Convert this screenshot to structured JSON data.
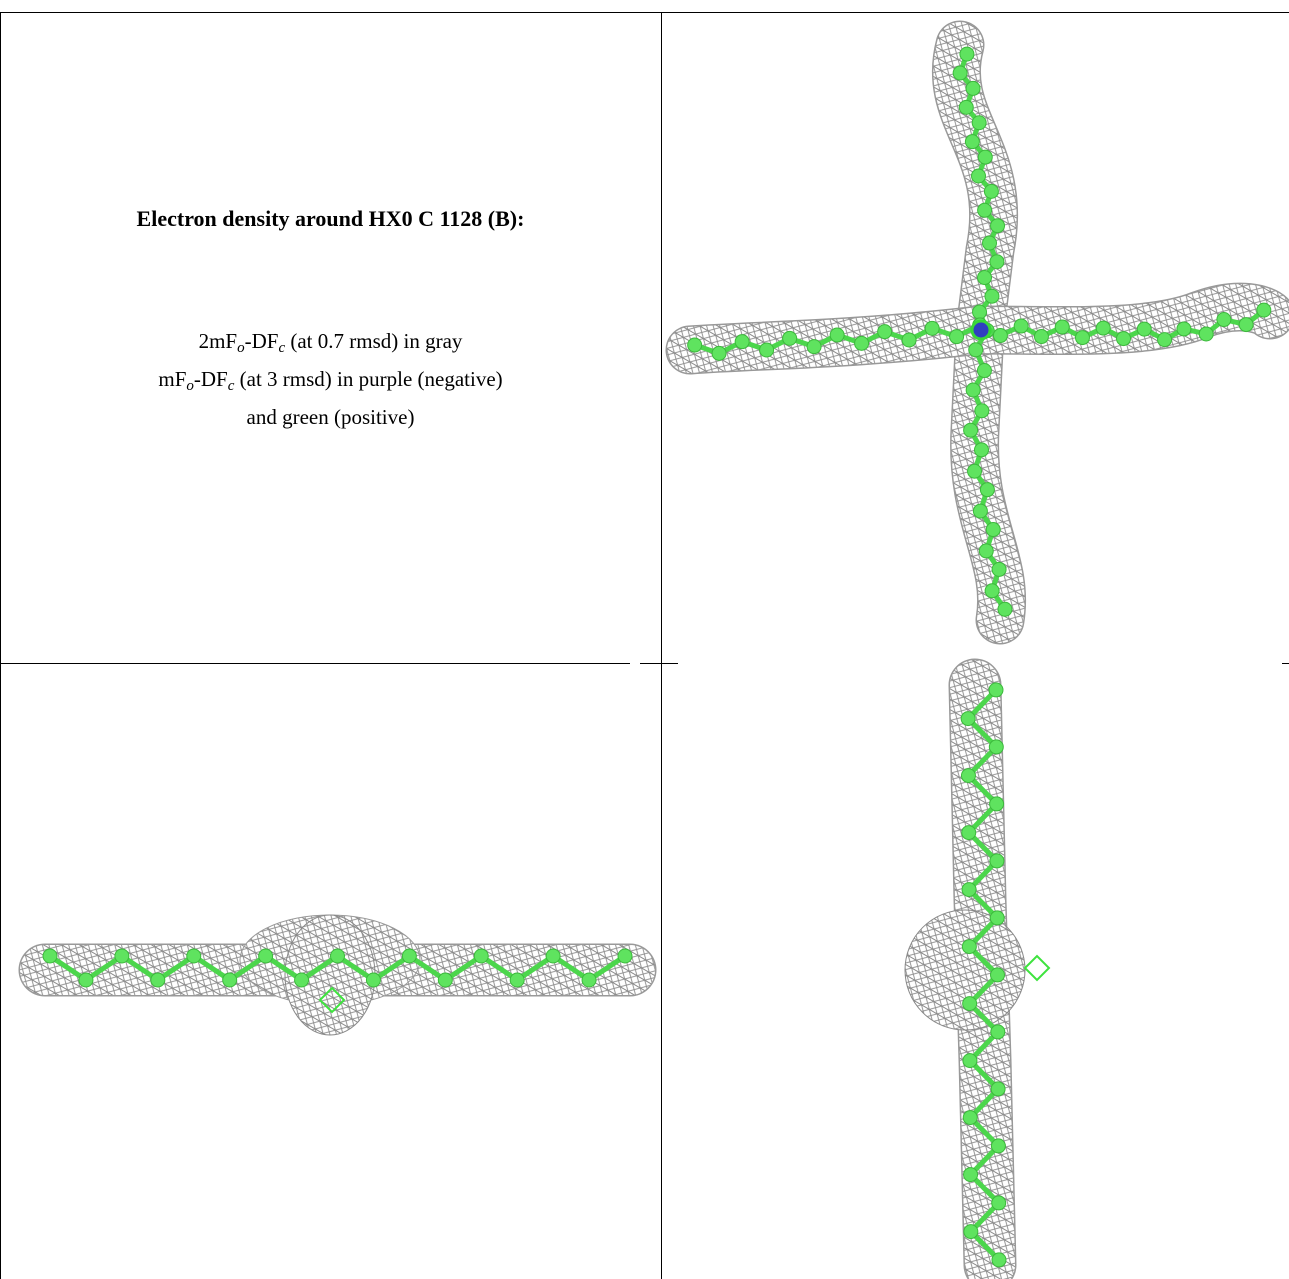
{
  "panel": {
    "title": "Electron density around HX0 C 1128 (B):",
    "legend": [
      [
        "2mF",
        "o",
        "-DF",
        "c",
        " (at 0.7 rmsd) in gray"
      ],
      [
        "mF",
        "o",
        "-DF",
        "c",
        " (at 3 rmsd) in purple (negative)"
      ],
      [
        "and green (positive)"
      ]
    ]
  }
}
